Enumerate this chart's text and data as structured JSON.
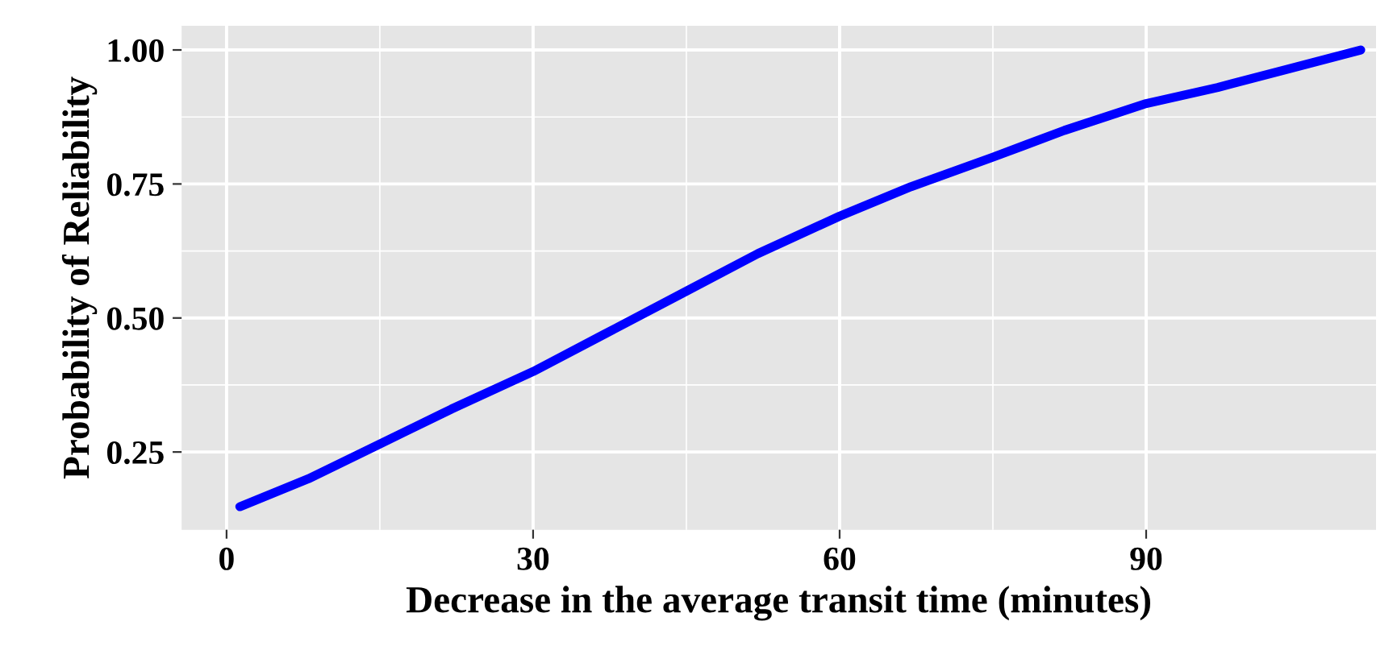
{
  "chart_data": {
    "type": "line",
    "xlabel": "Decrease in the average transit time (minutes)",
    "ylabel": "Probability of Reliability",
    "series": [
      {
        "color": "#0000ff",
        "x": [
          1.3,
          8,
          15,
          22,
          30,
          37,
          45,
          52,
          60,
          67,
          75,
          82,
          90,
          97,
          104,
          111
        ],
        "values": [
          0.148,
          0.2,
          0.265,
          0.33,
          0.4,
          0.47,
          0.55,
          0.62,
          0.69,
          0.745,
          0.8,
          0.85,
          0.9,
          0.93,
          0.965,
          1.0
        ]
      }
    ],
    "xlim": [
      -4.4,
      112.5
    ],
    "ylim": [
      0.105,
      1.045
    ],
    "xticks": [
      0,
      30,
      60,
      90
    ],
    "yticks": [
      0.25,
      {
        "value": 0.5,
        "label": "0.50"
      },
      0.75,
      {
        "value": 1.0,
        "label": "1.00"
      }
    ],
    "grid": true,
    "line_style": "solid",
    "marker": "none"
  }
}
